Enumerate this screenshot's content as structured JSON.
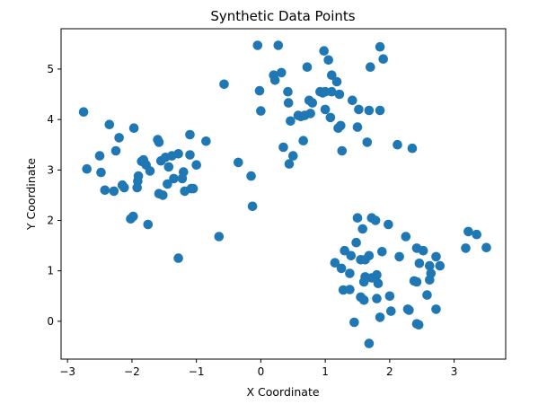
{
  "chart_data": {
    "type": "scatter",
    "title": "Synthetic Data Points",
    "xlabel": "X Coordinate",
    "ylabel": "Y Coordinate",
    "xlim": [
      -3.1,
      3.8
    ],
    "ylim": [
      -0.75,
      5.8
    ],
    "xticks": [
      -3,
      -2,
      -1,
      0,
      1,
      2,
      3
    ],
    "yticks": [
      0,
      1,
      2,
      3,
      4,
      5
    ],
    "grid": false,
    "point_color": "#1f77b4",
    "points": [
      [
        -2.75,
        4.15
      ],
      [
        -2.7,
        3.02
      ],
      [
        -2.5,
        3.28
      ],
      [
        -2.48,
        2.95
      ],
      [
        -2.42,
        2.6
      ],
      [
        -2.35,
        3.9
      ],
      [
        -2.28,
        2.58
      ],
      [
        -2.25,
        3.38
      ],
      [
        -2.2,
        3.64
      ],
      [
        -2.15,
        2.7
      ],
      [
        -2.12,
        2.65
      ],
      [
        -2.02,
        2.03
      ],
      [
        -1.98,
        2.08
      ],
      [
        -1.97,
        3.83
      ],
      [
        -1.92,
        2.65
      ],
      [
        -1.91,
        2.78
      ],
      [
        -1.9,
        2.88
      ],
      [
        -1.85,
        3.17
      ],
      [
        -1.82,
        3.2
      ],
      [
        -1.78,
        3.1
      ],
      [
        -1.75,
        1.92
      ],
      [
        -1.72,
        2.98
      ],
      [
        -1.6,
        3.6
      ],
      [
        -1.58,
        3.55
      ],
      [
        -1.58,
        2.53
      ],
      [
        -1.55,
        3.18
      ],
      [
        -1.52,
        2.5
      ],
      [
        -1.48,
        3.25
      ],
      [
        -1.45,
        2.72
      ],
      [
        -1.43,
        3.06
      ],
      [
        -1.38,
        3.28
      ],
      [
        -1.35,
        2.83
      ],
      [
        -1.28,
        3.32
      ],
      [
        -1.28,
        1.25
      ],
      [
        -1.22,
        2.83
      ],
      [
        -1.2,
        2.96
      ],
      [
        -1.18,
        2.58
      ],
      [
        -1.1,
        3.7
      ],
      [
        -1.1,
        3.3
      ],
      [
        -1.08,
        2.63
      ],
      [
        -1.05,
        2.63
      ],
      [
        -1.0,
        3.1
      ],
      [
        -0.85,
        3.57
      ],
      [
        -0.65,
        1.68
      ],
      [
        -0.57,
        4.7
      ],
      [
        -0.35,
        3.15
      ],
      [
        -0.15,
        2.88
      ],
      [
        -0.13,
        2.28
      ],
      [
        -0.05,
        5.47
      ],
      [
        -0.02,
        4.57
      ],
      [
        0.0,
        4.17
      ],
      [
        0.2,
        4.88
      ],
      [
        0.22,
        4.78
      ],
      [
        0.27,
        5.47
      ],
      [
        0.32,
        4.93
      ],
      [
        0.35,
        3.45
      ],
      [
        0.42,
        4.55
      ],
      [
        0.43,
        4.33
      ],
      [
        0.44,
        3.12
      ],
      [
        0.46,
        3.97
      ],
      [
        0.5,
        3.28
      ],
      [
        0.58,
        4.08
      ],
      [
        0.62,
        4.06
      ],
      [
        0.66,
        3.58
      ],
      [
        0.68,
        4.08
      ],
      [
        0.72,
        5.04
      ],
      [
        0.75,
        4.38
      ],
      [
        0.77,
        4.12
      ],
      [
        0.8,
        4.33
      ],
      [
        0.92,
        4.55
      ],
      [
        0.96,
        4.53
      ],
      [
        1.0,
        4.55
      ],
      [
        0.98,
        5.36
      ],
      [
        1.0,
        4.2
      ],
      [
        1.05,
        5.18
      ],
      [
        1.08,
        4.04
      ],
      [
        1.1,
        4.55
      ],
      [
        1.1,
        4.88
      ],
      [
        1.18,
        4.75
      ],
      [
        1.2,
        3.83
      ],
      [
        1.22,
        4.5
      ],
      [
        1.24,
        3.88
      ],
      [
        1.26,
        3.38
      ],
      [
        1.42,
        4.38
      ],
      [
        1.5,
        3.85
      ],
      [
        1.52,
        4.2
      ],
      [
        1.65,
        3.55
      ],
      [
        1.68,
        4.18
      ],
      [
        1.7,
        5.04
      ],
      [
        1.85,
        5.44
      ],
      [
        1.85,
        4.18
      ],
      [
        1.9,
        5.2
      ],
      [
        2.12,
        3.5
      ],
      [
        2.35,
        3.43
      ],
      [
        1.5,
        2.05
      ],
      [
        1.58,
        1.83
      ],
      [
        1.72,
        2.05
      ],
      [
        1.78,
        2.0
      ],
      [
        1.98,
        1.92
      ],
      [
        2.25,
        1.68
      ],
      [
        1.48,
        1.56
      ],
      [
        1.88,
        1.38
      ],
      [
        2.42,
        1.45
      ],
      [
        2.52,
        1.4
      ],
      [
        2.72,
        1.28
      ],
      [
        3.22,
        1.78
      ],
      [
        3.35,
        1.72
      ],
      [
        3.18,
        1.45
      ],
      [
        3.5,
        1.46
      ],
      [
        1.3,
        1.4
      ],
      [
        1.4,
        1.3
      ],
      [
        1.55,
        1.22
      ],
      [
        1.62,
        1.22
      ],
      [
        1.68,
        1.3
      ],
      [
        2.15,
        1.28
      ],
      [
        1.15,
        1.16
      ],
      [
        1.25,
        1.05
      ],
      [
        1.38,
        0.95
      ],
      [
        1.62,
        0.88
      ],
      [
        1.6,
        0.78
      ],
      [
        1.72,
        0.86
      ],
      [
        1.8,
        0.92
      ],
      [
        1.82,
        0.75
      ],
      [
        2.46,
        1.15
      ],
      [
        2.62,
        1.1
      ],
      [
        2.64,
        0.95
      ],
      [
        2.62,
        0.82
      ],
      [
        2.78,
        1.1
      ],
      [
        2.38,
        0.8
      ],
      [
        2.42,
        0.78
      ],
      [
        1.28,
        0.62
      ],
      [
        1.38,
        0.63
      ],
      [
        1.55,
        0.48
      ],
      [
        1.6,
        0.42
      ],
      [
        1.8,
        0.45
      ],
      [
        2.0,
        0.5
      ],
      [
        2.58,
        0.52
      ],
      [
        1.45,
        -0.02
      ],
      [
        1.85,
        0.08
      ],
      [
        2.02,
        0.2
      ],
      [
        2.28,
        0.24
      ],
      [
        2.3,
        0.22
      ],
      [
        2.72,
        0.24
      ],
      [
        2.42,
        -0.05
      ],
      [
        2.45,
        -0.07
      ],
      [
        1.68,
        -0.44
      ]
    ]
  }
}
